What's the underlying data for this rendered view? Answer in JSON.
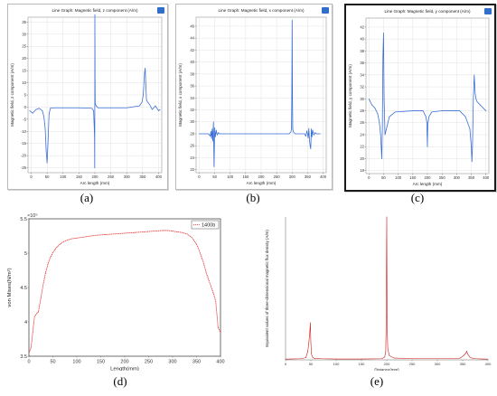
{
  "panels": [
    {
      "id": "a",
      "label": "(a)"
    },
    {
      "id": "b",
      "label": "(b)"
    },
    {
      "id": "c",
      "label": "(c)"
    },
    {
      "id": "d",
      "label": "(d)"
    },
    {
      "id": "e",
      "label": "(e)"
    }
  ],
  "chart_data": [
    {
      "id": "a",
      "type": "line",
      "title": "Line Graph: Magnetic field, z component (A/m)",
      "xlabel": "Arc length (mm)",
      "ylabel": "Magnetic field, z component (A/m)",
      "xlim": [
        -10,
        410
      ],
      "ylim": [
        -27,
        37
      ],
      "xticks": [
        0,
        50,
        100,
        150,
        200,
        250,
        300,
        350,
        400
      ],
      "yticks": [
        -25,
        -20,
        -15,
        -10,
        -5,
        0,
        5,
        10,
        15,
        20,
        25,
        30,
        35
      ],
      "grid": true,
      "color": "#3b6fd8",
      "x": [
        -5,
        5,
        15,
        25,
        35,
        40,
        44,
        47,
        50,
        53,
        56,
        60,
        70,
        100,
        150,
        190,
        196,
        199,
        199.5,
        200,
        200.5,
        201,
        204,
        210,
        250,
        300,
        340,
        348,
        352,
        356,
        358,
        360,
        362,
        366,
        372,
        380,
        390,
        400,
        405
      ],
      "y": [
        -1.5,
        -2.5,
        -1,
        -0.5,
        -1.5,
        -4,
        -9,
        -18,
        -23,
        -14,
        -3,
        -0.5,
        -0.3,
        -0.3,
        -0.3,
        -0.5,
        -1.5,
        -12,
        -25,
        38,
        12,
        1.5,
        0.5,
        -0.3,
        -0.3,
        -0.3,
        0.5,
        2,
        5,
        14,
        16,
        9,
        3,
        2,
        1,
        -1,
        0.5,
        -1.5,
        -1
      ]
    },
    {
      "id": "b",
      "type": "line",
      "title": "Line Graph: Magnetic field, x component (A/m)",
      "xlabel": "Arc length (mm)",
      "ylabel": "Magnetic field, x component (A/m)",
      "xlim": [
        -10,
        410
      ],
      "ylim": [
        21.5,
        47.5
      ],
      "xticks": [
        0,
        50,
        100,
        150,
        200,
        250,
        300,
        350,
        400
      ],
      "yticks": [
        22,
        24,
        26,
        28,
        30,
        32,
        34,
        36,
        38,
        40,
        42,
        44,
        46
      ],
      "grid": true,
      "color": "#3b6fd8",
      "x": [
        0,
        20,
        30,
        36,
        38,
        40,
        42,
        44,
        46,
        48,
        50,
        52,
        55,
        58,
        62,
        66,
        70,
        80,
        150,
        250,
        290,
        296,
        298,
        299,
        300,
        301,
        302,
        304,
        310,
        340,
        344,
        348,
        352,
        354,
        356,
        358,
        360,
        362,
        364,
        366,
        370,
        374,
        378,
        385,
        390
      ],
      "y": [
        28,
        28,
        28,
        27.6,
        28.4,
        27.2,
        28.8,
        26.8,
        30,
        22.5,
        29,
        27.5,
        28.6,
        27.8,
        28.2,
        28,
        28,
        28,
        28,
        28,
        28,
        28.3,
        28.8,
        35,
        47,
        35,
        28.8,
        28.3,
        28,
        28,
        27.6,
        28.5,
        27.3,
        28.9,
        27,
        26,
        25.5,
        28.8,
        27.5,
        28.6,
        27.8,
        28.2,
        28,
        28,
        28
      ]
    },
    {
      "id": "c",
      "type": "line",
      "title": "Line Graph: Magnetic field, y component (A/m)",
      "xlabel": "Arc length (mm)",
      "ylabel": "Magnetic field, y component (A/m)",
      "xlim": [
        -10,
        410
      ],
      "ylim": [
        17.5,
        43.5
      ],
      "xticks": [
        0,
        50,
        100,
        150,
        200,
        250,
        300,
        350,
        400
      ],
      "yticks": [
        18,
        20,
        22,
        24,
        26,
        28,
        30,
        32,
        34,
        36,
        38,
        40,
        42
      ],
      "grid": true,
      "color": "#3b6fd8",
      "x": [
        0,
        10,
        20,
        30,
        36,
        40,
        44,
        46,
        48,
        50,
        52,
        55,
        60,
        70,
        90,
        150,
        185,
        195,
        198,
        199,
        200,
        201,
        202,
        205,
        215,
        250,
        310,
        330,
        345,
        350,
        352,
        354,
        357,
        360,
        363,
        366,
        370,
        380,
        390,
        400
      ],
      "y": [
        30,
        29,
        28.5,
        27.5,
        26,
        24,
        20,
        25,
        37,
        41,
        30,
        24,
        25,
        27,
        27.8,
        28,
        28,
        27,
        26,
        24,
        22,
        25,
        26,
        27,
        27.8,
        28,
        28,
        27,
        25,
        22,
        19.5,
        22,
        30,
        34,
        31,
        30,
        29.5,
        29,
        28.5,
        28
      ]
    },
    {
      "id": "d",
      "type": "line",
      "title": "",
      "xlabel": "Length(mm)",
      "ylabel": "von Mises(N/m²)",
      "y_exponent": "×10⁵",
      "xlim": [
        0,
        400
      ],
      "ylim": [
        3.5,
        5.5
      ],
      "xticks": [
        0,
        50,
        100,
        150,
        200,
        250,
        300,
        350,
        400
      ],
      "yticks": [
        3.5,
        4,
        4.5,
        5,
        5.5
      ],
      "grid": false,
      "legend": "1400b",
      "legend_position": "top-right",
      "color": "#e83030",
      "x": [
        0,
        2,
        4,
        6,
        8,
        10,
        12,
        14,
        16,
        18,
        20,
        25,
        30,
        35,
        40,
        45,
        50,
        55,
        60,
        65,
        70,
        80,
        90,
        100,
        120,
        140,
        160,
        180,
        200,
        220,
        240,
        260,
        280,
        290,
        300,
        310,
        320,
        330,
        340,
        350,
        355,
        360,
        365,
        370,
        375,
        380,
        385,
        390,
        395,
        400
      ],
      "y": [
        3.55,
        3.58,
        3.62,
        3.72,
        3.85,
        3.98,
        4.08,
        4.1,
        4.12,
        4.13,
        4.15,
        4.35,
        4.55,
        4.72,
        4.85,
        4.94,
        5.01,
        5.06,
        5.1,
        5.13,
        5.16,
        5.19,
        5.21,
        5.22,
        5.24,
        5.26,
        5.27,
        5.28,
        5.29,
        5.3,
        5.31,
        5.32,
        5.33,
        5.33,
        5.32,
        5.31,
        5.3,
        5.28,
        5.23,
        5.13,
        5.05,
        4.95,
        4.85,
        4.72,
        4.62,
        4.52,
        4.42,
        4.3,
        3.92,
        3.85
      ]
    },
    {
      "id": "e",
      "type": "line",
      "title": "",
      "xlabel": "Distance(mm)",
      "ylabel": "Equivalent values of three-dimensional magnetic flux density (A/m)",
      "xlim": [
        0,
        400
      ],
      "ylim": [
        0,
        1
      ],
      "xticks": [
        0,
        50,
        100,
        150,
        200,
        250,
        300,
        350,
        400
      ],
      "xtick_labels": [
        "0",
        "50",
        "100",
        "150",
        "200",
        "250",
        "300",
        "350",
        "400"
      ],
      "grid": false,
      "color": "#d11a1a",
      "x": [
        0,
        10,
        30,
        40,
        44,
        46,
        48,
        49,
        50,
        51,
        52,
        54,
        58,
        70,
        100,
        150,
        190,
        196,
        198,
        199,
        199.5,
        200,
        200.5,
        201,
        202,
        205,
        215,
        260,
        330,
        345,
        352,
        356,
        358,
        360,
        362,
        364,
        368,
        375,
        390,
        400
      ],
      "y": [
        0.005,
        0.006,
        0.008,
        0.015,
        0.06,
        0.12,
        0.2,
        0.26,
        0.12,
        0.05,
        0.03,
        0.015,
        0.01,
        0.008,
        0.006,
        0.006,
        0.008,
        0.02,
        0.06,
        0.3,
        0.7,
        1.0,
        0.45,
        0.2,
        0.08,
        0.03,
        0.012,
        0.008,
        0.008,
        0.012,
        0.03,
        0.045,
        0.06,
        0.04,
        0.03,
        0.02,
        0.012,
        0.008,
        0.006,
        0.005
      ]
    }
  ]
}
